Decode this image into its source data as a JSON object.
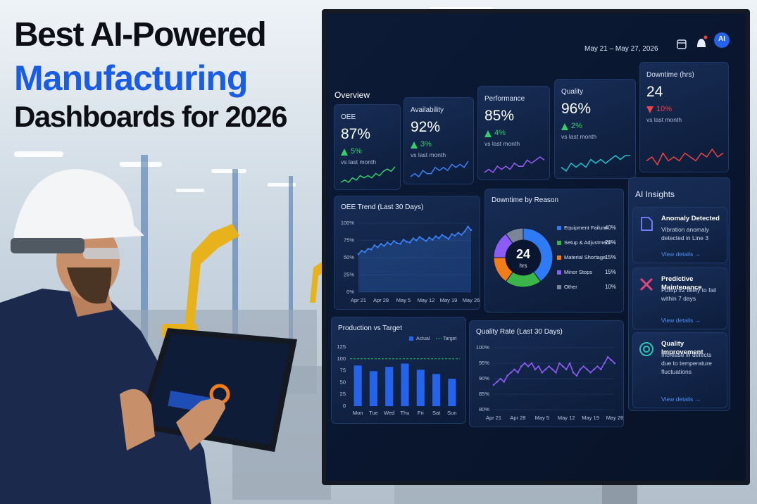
{
  "header": {
    "title": [
      "Best AI-Powered",
      "Manufacturing",
      "Dashboards for 2026"
    ]
  },
  "dashboard": {
    "date_range": "May 21 – May 27, 2026",
    "badge": "AI",
    "overview": "Overview",
    "kpis": [
      {
        "label": "OEE",
        "value": "87%",
        "change": "5%",
        "direction": "up",
        "note": "vs last month",
        "color": "#35d06a",
        "trend": [
          3,
          4,
          3,
          5,
          4,
          6,
          5,
          6,
          5,
          7,
          6,
          8,
          9,
          8,
          10
        ]
      },
      {
        "label": "Availability",
        "value": "92%",
        "change": "3%",
        "direction": "up",
        "note": "vs last month",
        "color": "#3b82f6",
        "trend": [
          4,
          5,
          4,
          6,
          5,
          5,
          7,
          6,
          7,
          6,
          8,
          7,
          8,
          7,
          9
        ]
      },
      {
        "label": "Performance",
        "value": "85%",
        "change": "4%",
        "direction": "up",
        "note": "vs last month",
        "color": "#9b5cf6",
        "trend": [
          4,
          5,
          4,
          6,
          5,
          6,
          5,
          7,
          6,
          6,
          8,
          7,
          8,
          9,
          8
        ]
      },
      {
        "label": "Quality",
        "value": "96%",
        "change": "2%",
        "direction": "up",
        "note": "vs last month",
        "color": "#22c1c8",
        "trend": [
          5,
          4,
          6,
          5,
          6,
          5,
          7,
          6,
          7,
          6,
          7,
          8,
          7,
          8,
          8
        ]
      },
      {
        "label": "Downtime (hrs)",
        "value": "24",
        "change": "10%",
        "direction": "down",
        "note": "vs last month",
        "color": "#ef4444",
        "trend": [
          5,
          6,
          4,
          7,
          5,
          6,
          5,
          7,
          6,
          5,
          7,
          6,
          8,
          6,
          7
        ]
      }
    ],
    "insights": {
      "title": "AI Insights",
      "items": [
        {
          "title": "Anomaly Detected",
          "text": "Vibration anomaly detected in Line 3",
          "link": "View details →"
        },
        {
          "title": "Predictive Maintenance",
          "text": "Pump #2 likely to fail within 7 days",
          "link": "View details →"
        },
        {
          "title": "Quality Improvement",
          "text": "Increase in defects due to temperature fluctuations",
          "link": "View details →"
        }
      ]
    }
  },
  "chart_data": [
    {
      "type": "line",
      "title": "OEE Trend (Last 30 Days)",
      "color": "#3b82f6",
      "area": true,
      "categories": [
        "Apr 21",
        null,
        null,
        null,
        null,
        null,
        null,
        "Apr 28",
        null,
        null,
        null,
        null,
        null,
        null,
        "May 5",
        null,
        null,
        null,
        null,
        null,
        null,
        "May 12",
        null,
        null,
        null,
        null,
        null,
        null,
        "May 19",
        null,
        null,
        null,
        null,
        null,
        null,
        "May 26"
      ],
      "values": [
        55,
        60,
        58,
        63,
        62,
        68,
        65,
        70,
        67,
        72,
        69,
        74,
        71,
        70,
        76,
        73,
        72,
        78,
        75,
        80,
        77,
        74,
        79,
        76,
        81,
        78,
        83,
        80,
        77,
        84,
        82,
        86,
        83,
        88,
        95,
        90
      ],
      "ylim": [
        0,
        100
      ],
      "yticks": [
        {
          "value": 0,
          "label": "0%"
        },
        {
          "value": 25,
          "label": "25%"
        },
        {
          "value": 50,
          "label": "50%"
        },
        {
          "value": 75,
          "label": "75%"
        },
        {
          "value": 100,
          "label": "100%"
        }
      ],
      "grid": true
    },
    {
      "type": "pie",
      "title": "Downtime by Reason",
      "center_value": "24",
      "center_unit": "hrs",
      "categories": [
        "Equipment Failure",
        "Setup & Adjustment",
        "Material Shortage",
        "Minor Stops",
        "Other"
      ],
      "values": [
        40,
        20,
        15,
        15,
        10
      ],
      "value_labels": [
        "40%",
        "20%",
        "15%",
        "15%",
        "10%"
      ],
      "colors": [
        "#2f7bf5",
        "#3bb54a",
        "#f07d1a",
        "#8b5cf6",
        "#7a8599"
      ]
    },
    {
      "type": "bar",
      "title": "Production vs Target",
      "categories": [
        "Mon",
        "Tue",
        "Wed",
        "Thu",
        "Fri",
        "Sat",
        "Sun"
      ],
      "series": [
        {
          "name": "Actual",
          "color": "#2563eb",
          "values": [
            86,
            74,
            83,
            90,
            77,
            68,
            58
          ]
        },
        {
          "name": "Target",
          "color": "#22c55e",
          "type": "line",
          "values": [
            100,
            100,
            100,
            100,
            100,
            100,
            100
          ]
        }
      ],
      "ylim": [
        0,
        125
      ],
      "yticks": [
        0,
        25,
        50,
        75,
        100,
        125
      ]
    },
    {
      "type": "line",
      "title": "Quality Rate (Last 30 Days)",
      "color": "#8b5cf6",
      "area": false,
      "categories": [
        "Apr 21",
        null,
        null,
        null,
        null,
        null,
        null,
        "Apr 28",
        null,
        null,
        null,
        null,
        null,
        null,
        "May 5",
        null,
        null,
        null,
        null,
        null,
        null,
        "May 12",
        null,
        null,
        null,
        null,
        null,
        null,
        "May 19",
        null,
        null,
        null,
        null,
        null,
        null,
        "May 26"
      ],
      "values": [
        88,
        89,
        90,
        89,
        91,
        92,
        93,
        92,
        94,
        95,
        94,
        95,
        93,
        94,
        92,
        93,
        94,
        93,
        92,
        95,
        94,
        93,
        95,
        92,
        91,
        93,
        94,
        93,
        92,
        93,
        94,
        93,
        95,
        97,
        96,
        95
      ],
      "ylim": [
        80,
        100
      ],
      "yticks": [
        {
          "value": 80,
          "label": "80%"
        },
        {
          "value": 85,
          "label": "85%"
        },
        {
          "value": 90,
          "label": "90%"
        },
        {
          "value": 95,
          "label": "95%"
        },
        {
          "value": 100,
          "label": "100%"
        }
      ],
      "grid": true
    }
  ]
}
